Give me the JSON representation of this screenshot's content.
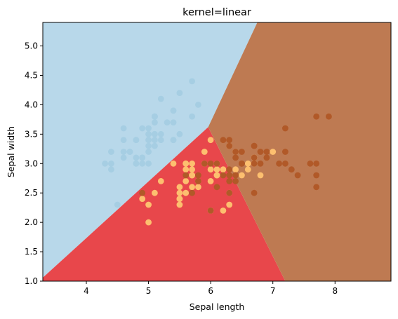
{
  "chart_data": {
    "type": "scatter",
    "title": "kernel=linear",
    "xlabel": "Sepal length",
    "ylabel": "Sepal width",
    "xlim": [
      3.3,
      8.9
    ],
    "ylim": [
      1.0,
      5.4
    ],
    "xticks": [
      4,
      5,
      6,
      7,
      8
    ],
    "yticks": [
      1.0,
      1.5,
      2.0,
      2.5,
      3.0,
      3.5,
      4.0,
      4.5,
      5.0
    ],
    "grid": false,
    "legend": "none",
    "decision_regions": [
      {
        "class": "setosa-region",
        "color": "#b8d8ea",
        "polygon": [
          [
            3.3,
            1.06
          ],
          [
            5.96,
            3.62
          ],
          [
            6.75,
            5.4
          ],
          [
            3.3,
            5.4
          ]
        ]
      },
      {
        "class": "versicolor-region",
        "color": "#e8474b",
        "polygon": [
          [
            3.3,
            1.0
          ],
          [
            3.3,
            1.06
          ],
          [
            5.96,
            3.62
          ],
          [
            7.2,
            1.0
          ]
        ]
      },
      {
        "class": "virginica-region",
        "color": "#be7a52",
        "polygon": [
          [
            5.96,
            3.62
          ],
          [
            6.75,
            5.4
          ],
          [
            8.9,
            5.4
          ],
          [
            8.9,
            1.0
          ],
          [
            7.2,
            1.0
          ]
        ]
      }
    ],
    "series": [
      {
        "color": "#a6cee3",
        "points": [
          [
            5.1,
            3.5
          ],
          [
            4.9,
            3.0
          ],
          [
            4.7,
            3.2
          ],
          [
            4.6,
            3.1
          ],
          [
            5.0,
            3.6
          ],
          [
            5.4,
            3.9
          ],
          [
            4.6,
            3.4
          ],
          [
            5.0,
            3.4
          ],
          [
            4.4,
            2.9
          ],
          [
            4.9,
            3.1
          ],
          [
            5.4,
            3.7
          ],
          [
            4.8,
            3.4
          ],
          [
            4.8,
            3.0
          ],
          [
            4.3,
            3.0
          ],
          [
            5.8,
            4.0
          ],
          [
            5.7,
            4.4
          ],
          [
            5.4,
            3.9
          ],
          [
            5.1,
            3.5
          ],
          [
            5.7,
            3.8
          ],
          [
            5.1,
            3.8
          ],
          [
            5.4,
            3.4
          ],
          [
            5.1,
            3.7
          ],
          [
            4.6,
            3.6
          ],
          [
            5.1,
            3.3
          ],
          [
            4.8,
            3.4
          ],
          [
            5.0,
            3.0
          ],
          [
            5.0,
            3.4
          ],
          [
            5.2,
            3.5
          ],
          [
            5.2,
            3.4
          ],
          [
            4.7,
            3.2
          ],
          [
            4.8,
            3.1
          ],
          [
            5.4,
            3.4
          ],
          [
            5.2,
            4.1
          ],
          [
            5.5,
            4.2
          ],
          [
            4.9,
            3.1
          ],
          [
            5.0,
            3.2
          ],
          [
            5.5,
            3.5
          ],
          [
            4.9,
            3.6
          ],
          [
            4.4,
            3.0
          ],
          [
            5.1,
            3.4
          ],
          [
            5.0,
            3.5
          ],
          [
            4.5,
            2.3
          ],
          [
            4.4,
            3.2
          ],
          [
            5.0,
            3.5
          ],
          [
            5.1,
            3.8
          ],
          [
            4.8,
            3.0
          ],
          [
            5.1,
            3.8
          ],
          [
            4.6,
            3.2
          ],
          [
            5.3,
            3.7
          ],
          [
            5.0,
            3.3
          ]
        ]
      },
      {
        "color": "#fdbf6f",
        "points": [
          [
            7.0,
            3.2
          ],
          [
            6.4,
            3.2
          ],
          [
            6.9,
            3.1
          ],
          [
            5.5,
            2.3
          ],
          [
            6.5,
            2.8
          ],
          [
            5.7,
            2.8
          ],
          [
            6.3,
            3.3
          ],
          [
            4.9,
            2.4
          ],
          [
            6.6,
            2.9
          ],
          [
            5.2,
            2.7
          ],
          [
            5.0,
            2.0
          ],
          [
            5.9,
            3.0
          ],
          [
            6.0,
            2.2
          ],
          [
            6.1,
            2.9
          ],
          [
            5.6,
            2.9
          ],
          [
            6.7,
            3.1
          ],
          [
            5.6,
            3.0
          ],
          [
            5.8,
            2.7
          ],
          [
            6.2,
            2.2
          ],
          [
            5.6,
            2.5
          ],
          [
            5.9,
            3.2
          ],
          [
            6.1,
            2.8
          ],
          [
            6.3,
            2.5
          ],
          [
            6.1,
            2.8
          ],
          [
            6.4,
            2.9
          ],
          [
            6.6,
            3.0
          ],
          [
            6.8,
            2.8
          ],
          [
            6.7,
            3.0
          ],
          [
            6.0,
            2.9
          ],
          [
            5.7,
            2.6
          ],
          [
            5.5,
            2.4
          ],
          [
            5.5,
            2.4
          ],
          [
            5.8,
            2.7
          ],
          [
            6.0,
            2.7
          ],
          [
            5.4,
            3.0
          ],
          [
            6.0,
            3.4
          ],
          [
            6.7,
            3.1
          ],
          [
            6.3,
            2.3
          ],
          [
            5.6,
            3.0
          ],
          [
            5.5,
            2.5
          ],
          [
            5.5,
            2.6
          ],
          [
            6.1,
            3.0
          ],
          [
            5.8,
            2.6
          ],
          [
            5.0,
            2.3
          ],
          [
            5.6,
            2.7
          ],
          [
            5.7,
            3.0
          ],
          [
            5.7,
            2.9
          ],
          [
            6.2,
            2.9
          ],
          [
            5.1,
            2.5
          ],
          [
            5.7,
            2.8
          ]
        ]
      },
      {
        "color": "#b15928",
        "points": [
          [
            6.3,
            3.3
          ],
          [
            5.8,
            2.7
          ],
          [
            7.1,
            3.0
          ],
          [
            6.3,
            2.9
          ],
          [
            6.5,
            3.0
          ],
          [
            7.6,
            3.0
          ],
          [
            4.9,
            2.5
          ],
          [
            7.3,
            2.9
          ],
          [
            6.7,
            2.5
          ],
          [
            7.2,
            3.6
          ],
          [
            6.5,
            3.2
          ],
          [
            6.4,
            2.7
          ],
          [
            6.8,
            3.0
          ],
          [
            5.7,
            2.5
          ],
          [
            5.8,
            2.8
          ],
          [
            6.4,
            3.2
          ],
          [
            6.5,
            3.0
          ],
          [
            7.7,
            3.8
          ],
          [
            7.7,
            2.6
          ],
          [
            6.0,
            2.2
          ],
          [
            6.9,
            3.2
          ],
          [
            5.6,
            2.8
          ],
          [
            7.7,
            2.8
          ],
          [
            6.3,
            2.7
          ],
          [
            6.7,
            3.3
          ],
          [
            7.2,
            3.2
          ],
          [
            6.2,
            2.8
          ],
          [
            6.1,
            3.0
          ],
          [
            6.4,
            2.8
          ],
          [
            7.2,
            3.0
          ],
          [
            7.4,
            2.8
          ],
          [
            7.9,
            3.8
          ],
          [
            6.4,
            2.8
          ],
          [
            6.3,
            2.8
          ],
          [
            6.1,
            2.6
          ],
          [
            7.7,
            3.0
          ],
          [
            6.3,
            3.4
          ],
          [
            6.4,
            3.1
          ],
          [
            6.0,
            3.0
          ],
          [
            6.9,
            3.1
          ],
          [
            6.7,
            3.1
          ],
          [
            6.9,
            3.1
          ],
          [
            5.8,
            2.7
          ],
          [
            6.8,
            3.2
          ],
          [
            6.7,
            3.3
          ],
          [
            6.7,
            3.0
          ],
          [
            6.3,
            2.5
          ],
          [
            6.5,
            3.0
          ],
          [
            6.2,
            3.4
          ],
          [
            5.9,
            3.0
          ]
        ]
      }
    ]
  }
}
